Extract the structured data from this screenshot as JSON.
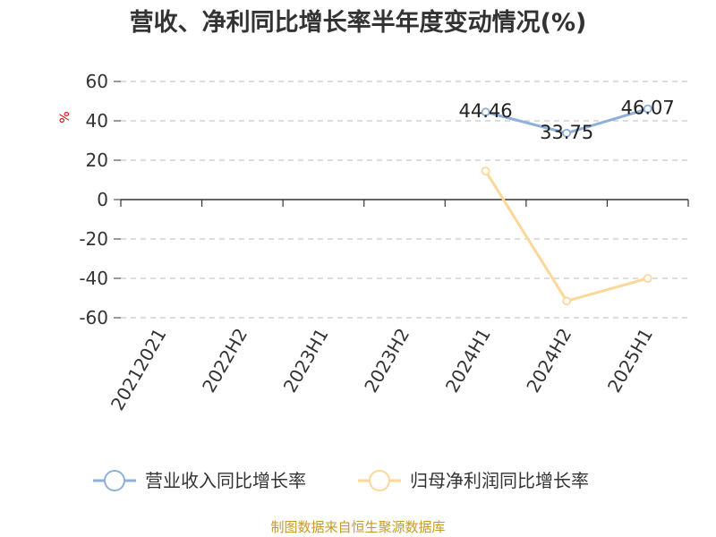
{
  "chart_data": {
    "type": "line",
    "title": "营收、净利同比增长率半年度变动情况(%)",
    "ylabel": "%",
    "categories": [
      "20212021",
      "2022H2",
      "2023H1",
      "2023H2",
      "2024H1",
      "2024H2",
      "2025H1"
    ],
    "ylim": [
      -60,
      60
    ],
    "yticks": [
      60,
      40,
      20,
      0,
      -20,
      -40,
      -60
    ],
    "grid": true,
    "legend_position": "bottom",
    "series": [
      {
        "name": "营业收入同比增长率",
        "color": "#8eb0d9",
        "values": [
          null,
          null,
          null,
          null,
          44.46,
          33.75,
          46.07
        ],
        "labels": [
          "",
          "",
          "",
          "",
          "44.46",
          "33.75",
          "46.07"
        ]
      },
      {
        "name": "归母净利润同比增长率",
        "color": "#fbd79a",
        "values": [
          null,
          null,
          null,
          null,
          14.5,
          -51.5,
          -40.0
        ],
        "labels": [
          "",
          "",
          "",
          "",
          "",
          "",
          ""
        ]
      }
    ]
  },
  "source": "制图数据来自恒生聚源数据库"
}
